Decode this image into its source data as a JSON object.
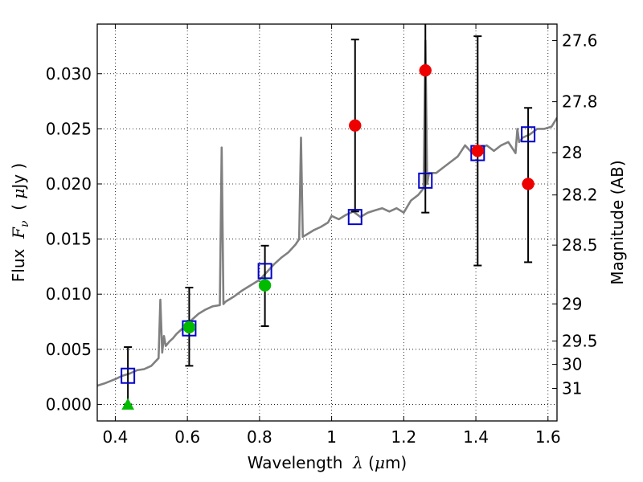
{
  "chart_data": {
    "type": "scatter",
    "title": "",
    "xlabel": {
      "prefix": "Wavelength  ",
      "symbol": "λ",
      "suffix": " (",
      "unit_symbol": "μ",
      "unit": "m)"
    },
    "ylabel": {
      "prefix": "Flux  ",
      "symbol": "F",
      "subscript": "ν",
      "suffix": "  ( ",
      "unit_symbol": "μ",
      "unit": "Jy )"
    },
    "y2label": "Magnitude (AB)",
    "xlim": [
      0.35,
      1.625
    ],
    "ylim": [
      -0.0015,
      0.0345
    ],
    "grid": true,
    "x_ticks": [
      {
        "value": 0.4,
        "label": "0.4"
      },
      {
        "value": 0.6,
        "label": "0.6"
      },
      {
        "value": 0.8,
        "label": "0.8"
      },
      {
        "value": 1.0,
        "label": "1"
      },
      {
        "value": 1.2,
        "label": "1.2"
      },
      {
        "value": 1.4,
        "label": "1.4"
      },
      {
        "value": 1.6,
        "label": "1.6"
      }
    ],
    "y_ticks": [
      {
        "value": 0.0,
        "label": "0.000"
      },
      {
        "value": 0.005,
        "label": "0.005"
      },
      {
        "value": 0.01,
        "label": "0.010"
      },
      {
        "value": 0.015,
        "label": "0.015"
      },
      {
        "value": 0.02,
        "label": "0.020"
      },
      {
        "value": 0.025,
        "label": "0.025"
      },
      {
        "value": 0.03,
        "label": "0.030"
      }
    ],
    "y2_ticks": [
      {
        "flux": 0.03301,
        "label": "27.6"
      },
      {
        "flux": 0.02746,
        "label": "27.8"
      },
      {
        "flux": 0.02284,
        "label": "28"
      },
      {
        "flux": 0.019,
        "label": "28.2"
      },
      {
        "flux": 0.01445,
        "label": "28.5"
      },
      {
        "flux": 0.00912,
        "label": "29"
      },
      {
        "flux": 0.00575,
        "label": "29.5"
      },
      {
        "flux": 0.00363,
        "label": "30"
      },
      {
        "flux": 0.00145,
        "label": "31"
      }
    ],
    "series": [
      {
        "role": "model_sed",
        "color": "#808080",
        "x": [
          0.35,
          0.37,
          0.4,
          0.42,
          0.44,
          0.46,
          0.48,
          0.5,
          0.52,
          0.525,
          0.53,
          0.535,
          0.54,
          0.55,
          0.56,
          0.57,
          0.58,
          0.59,
          0.6,
          0.61,
          0.62,
          0.63,
          0.65,
          0.67,
          0.69,
          0.695,
          0.7,
          0.705,
          0.71,
          0.73,
          0.75,
          0.77,
          0.79,
          0.8,
          0.82,
          0.84,
          0.86,
          0.88,
          0.9,
          0.91,
          0.915,
          0.92,
          0.93,
          0.95,
          0.97,
          0.99,
          1.0,
          1.02,
          1.04,
          1.06,
          1.08,
          1.1,
          1.12,
          1.14,
          1.16,
          1.18,
          1.2,
          1.22,
          1.24,
          1.255,
          1.26,
          1.265,
          1.27,
          1.29,
          1.31,
          1.33,
          1.35,
          1.37,
          1.39,
          1.41,
          1.43,
          1.45,
          1.47,
          1.49,
          1.51,
          1.515,
          1.52,
          1.53,
          1.55,
          1.57,
          1.59,
          1.61,
          1.625
        ],
        "y": [
          0.0017,
          0.0019,
          0.0023,
          0.0026,
          0.0028,
          0.0031,
          0.0032,
          0.0035,
          0.0042,
          0.0095,
          0.0047,
          0.0062,
          0.0053,
          0.0057,
          0.006,
          0.0064,
          0.0067,
          0.007,
          0.0073,
          0.0076,
          0.0079,
          0.0082,
          0.0086,
          0.0089,
          0.009,
          0.0233,
          0.0091,
          0.0093,
          0.0094,
          0.0098,
          0.0103,
          0.0107,
          0.0111,
          0.0113,
          0.012,
          0.0127,
          0.0133,
          0.0138,
          0.0145,
          0.015,
          0.0242,
          0.0152,
          0.0154,
          0.0158,
          0.0161,
          0.0165,
          0.0171,
          0.0168,
          0.0172,
          0.0175,
          0.017,
          0.0174,
          0.0176,
          0.0178,
          0.0175,
          0.0178,
          0.0174,
          0.0185,
          0.019,
          0.0196,
          0.033,
          0.02,
          0.021,
          0.021,
          0.0215,
          0.022,
          0.0225,
          0.0235,
          0.0228,
          0.0232,
          0.0235,
          0.023,
          0.0235,
          0.0238,
          0.0228,
          0.025,
          0.0238,
          0.0242,
          0.0245,
          0.025,
          0.025,
          0.0252,
          0.026
        ]
      },
      {
        "role": "model_photometry",
        "marker": "open-square",
        "color": "#0000cc",
        "x": [
          0.435,
          0.605,
          0.815,
          1.065,
          1.26,
          1.405,
          1.545
        ],
        "y": [
          0.0026,
          0.0069,
          0.0121,
          0.017,
          0.0203,
          0.0228,
          0.0245
        ]
      },
      {
        "role": "detections_optical",
        "marker": "circle",
        "color": "#00bb00",
        "x": [
          0.605,
          0.815
        ],
        "y": [
          0.007,
          0.0108
        ],
        "yerr_low": [
          0.0035,
          0.0037
        ],
        "yerr_high": [
          0.0036,
          0.0036
        ]
      },
      {
        "role": "upper_limit",
        "marker": "triangle-up",
        "color": "#00bb00",
        "x": [
          0.435
        ],
        "y": [
          0.0
        ],
        "yerr_low": [
          0.0
        ],
        "yerr_high": [
          0.0052
        ]
      },
      {
        "role": "detections_nir",
        "marker": "circle",
        "color": "#ee0000",
        "x": [
          1.065,
          1.26,
          1.405,
          1.545
        ],
        "y": [
          0.0253,
          0.0303,
          0.023,
          0.02
        ],
        "yerr_low": [
          0.0078,
          0.0129,
          0.0104,
          0.0071
        ],
        "yerr_high": [
          0.0078,
          0.006,
          0.0104,
          0.0069
        ]
      }
    ]
  }
}
